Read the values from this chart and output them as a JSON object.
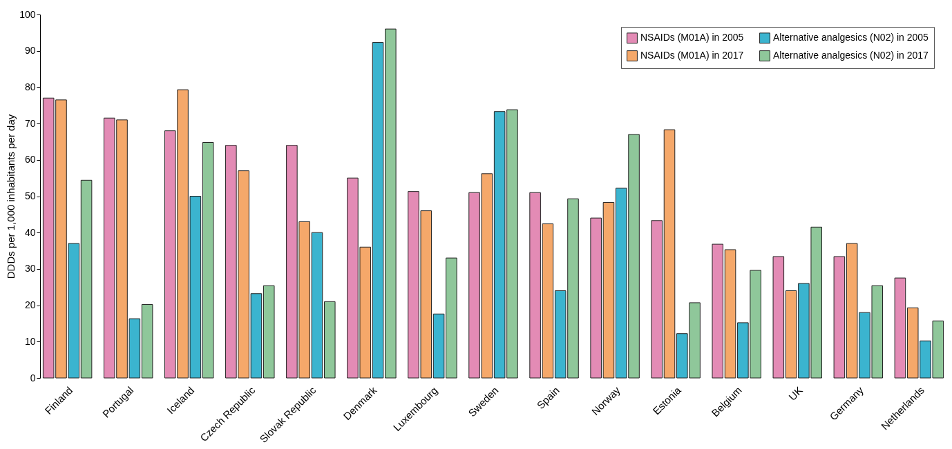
{
  "chart_data": {
    "type": "bar",
    "ylabel": "DDDs per 1,000 inhabitants per day",
    "categories": [
      "Finland",
      "Portugal",
      "Iceland",
      "Czech Republic",
      "Slovak Republic",
      "Denmark",
      "Luxembourg",
      "Sweden",
      "Spain",
      "Norway",
      "Estonia",
      "Belgium",
      "UK",
      "Germany",
      "Netherlands"
    ],
    "series": [
      {
        "name": "NSAIDs (M01A) in 2005",
        "color": "#e38bb5",
        "values": [
          77,
          71.5,
          68,
          64,
          64,
          55,
          51.3,
          51,
          51,
          44,
          43.3,
          36.8,
          33.4,
          33.4,
          27.5
        ]
      },
      {
        "name": "NSAIDs (M01A) in 2017",
        "color": "#f5a86a",
        "values": [
          76.5,
          71,
          79.3,
          57,
          43,
          36,
          46,
          56.2,
          42.4,
          48.3,
          68.3,
          35.3,
          24,
          37,
          19.3
        ]
      },
      {
        "name": "Alternative analgesics (N02) in 2005",
        "color": "#3bb4cf",
        "values": [
          37,
          16.3,
          50,
          23.2,
          40,
          92.3,
          17.6,
          73.3,
          24,
          52.2,
          12.2,
          15.2,
          26,
          18,
          10.2
        ]
      },
      {
        "name": "Alternative analgesics (N02) in 2017",
        "color": "#8fc79a",
        "values": [
          54.4,
          20.2,
          64.8,
          25.4,
          21,
          96,
          33,
          73.8,
          49.3,
          67,
          20.7,
          29.6,
          41.5,
          25.4,
          15.7
        ]
      }
    ],
    "ylim": [
      0,
      100
    ],
    "yticks": [
      0,
      10,
      20,
      30,
      40,
      50,
      60,
      70,
      80,
      90,
      100
    ],
    "grid": false,
    "legend": "top right"
  }
}
